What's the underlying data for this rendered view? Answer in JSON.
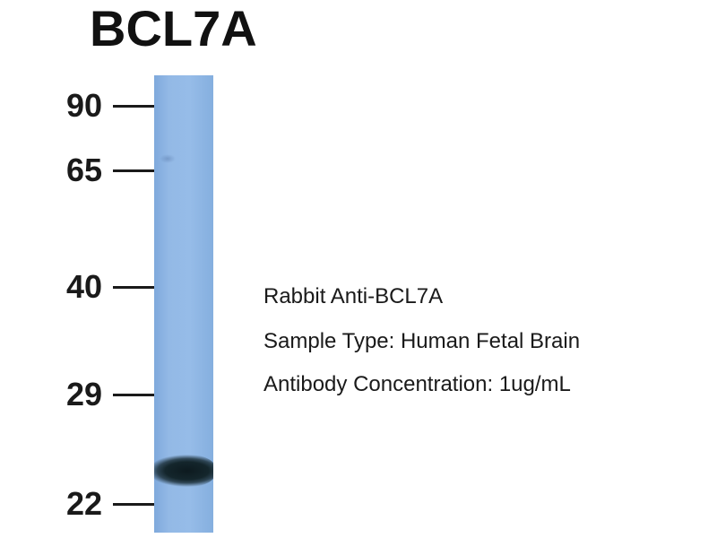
{
  "title": "BCL7A",
  "markers": [
    "90",
    "65",
    "40",
    "29",
    "22"
  ],
  "info": {
    "line1": "Rabbit Anti-BCL7A",
    "line2": "Sample Type: Human Fetal Brain",
    "line3": "Antibody Concentration: 1ug/mL"
  },
  "colors": {
    "lane": "#93b9e6",
    "band": "#14262c",
    "text": "#1a1a1a"
  }
}
